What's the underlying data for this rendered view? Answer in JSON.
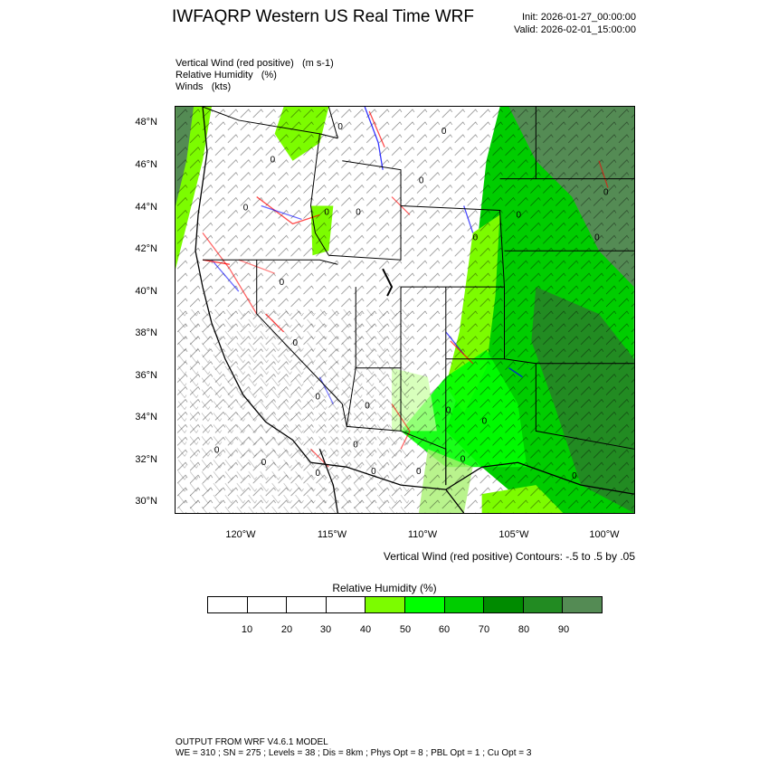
{
  "header": {
    "title": "IWFAQRP Western US Real Time WRF",
    "init": "Init: 2026-01-27_00:00:00",
    "valid": "Valid: 2026-02-01_15:00:00"
  },
  "fields": [
    {
      "name": "Vertical Wind (red positive)",
      "units": "(m s-1)"
    },
    {
      "name": "Relative Humidity",
      "units": "(%)"
    },
    {
      "name": "Winds",
      "units": "(kts)"
    }
  ],
  "map": {
    "latitude_labels": [
      "48°N",
      "46°N",
      "44°N",
      "42°N",
      "40°N",
      "38°N",
      "36°N",
      "34°N",
      "32°N",
      "30°N"
    ],
    "longitude_labels": [
      "120°W",
      "115°W",
      "110°W",
      "105°W",
      "100°W"
    ],
    "contour_label": "0",
    "colors": {
      "positive_vertical_wind": "#ff0000",
      "negative_vertical_wind": "#0000ff",
      "state_borders": "#000000",
      "wind_barbs": "#000000"
    }
  },
  "contour_note": "Vertical Wind (red positive) Contours: -.5 to .5 by .05",
  "colorbar": {
    "title": "Relative Humidity  (%)",
    "labels": [
      "10",
      "20",
      "30",
      "40",
      "50",
      "60",
      "70",
      "80",
      "90"
    ],
    "colors": [
      "#ffffff",
      "#ffffff",
      "#ffffff",
      "#ffffff",
      "#7cfc00",
      "#00ff00",
      "#00cd00",
      "#008b00",
      "#228b22",
      "#548b54"
    ]
  },
  "footer": {
    "line1": "OUTPUT FROM WRF V4.6.1 MODEL",
    "line2": "WE = 310 ; SN = 275 ; Levels = 38 ; Dis = 8km ; Phys Opt = 8 ; PBL Opt = 1 ; Cu Opt = 3"
  }
}
